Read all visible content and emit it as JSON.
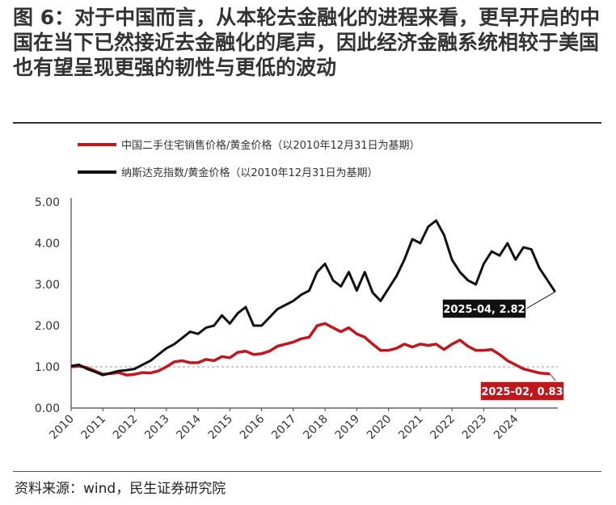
{
  "title": "图 6：对于中国而言，从本轮去金融化的进程来看，更早开启的中国在当下已然接近去金融化的尾声，因此经济金融系统相较于美国也有望呈现更强的韧性与更低的波动",
  "source": "资料来源：wind，民生证券研究院",
  "chart_data": {
    "type": "line",
    "x_ticks": [
      "2010",
      "2011",
      "2012",
      "2013",
      "2014",
      "2015",
      "2016",
      "2017",
      "2018",
      "2019",
      "2020",
      "2021",
      "2022",
      "2023",
      "2024"
    ],
    "y_ticks": [
      "0.00",
      "1.00",
      "2.00",
      "3.00",
      "4.00",
      "5.00"
    ],
    "ylim": [
      0,
      5
    ],
    "xlim": [
      "2010-01",
      "2025-04"
    ],
    "reference_line": 1.0,
    "grid": false,
    "legend_position": "top-left",
    "series": [
      {
        "name": "中国二手住宅销售价格/黄金价格（以2010年12月31日为基期）",
        "color": "#c0171c",
        "points": [
          [
            "2010-01",
            1.0
          ],
          [
            "2010-04",
            1.02
          ],
          [
            "2010-07",
            0.98
          ],
          [
            "2010-10",
            0.9
          ],
          [
            "2011-01",
            0.82
          ],
          [
            "2011-04",
            0.84
          ],
          [
            "2011-07",
            0.86
          ],
          [
            "2011-10",
            0.8
          ],
          [
            "2012-01",
            0.82
          ],
          [
            "2012-04",
            0.86
          ],
          [
            "2012-07",
            0.85
          ],
          [
            "2012-10",
            0.9
          ],
          [
            "2013-01",
            1.0
          ],
          [
            "2013-04",
            1.12
          ],
          [
            "2013-07",
            1.15
          ],
          [
            "2013-10",
            1.1
          ],
          [
            "2014-01",
            1.1
          ],
          [
            "2014-04",
            1.18
          ],
          [
            "2014-07",
            1.15
          ],
          [
            "2014-10",
            1.25
          ],
          [
            "2015-01",
            1.22
          ],
          [
            "2015-04",
            1.35
          ],
          [
            "2015-07",
            1.38
          ],
          [
            "2015-10",
            1.3
          ],
          [
            "2016-01",
            1.32
          ],
          [
            "2016-04",
            1.38
          ],
          [
            "2016-07",
            1.5
          ],
          [
            "2016-10",
            1.55
          ],
          [
            "2017-01",
            1.6
          ],
          [
            "2017-04",
            1.68
          ],
          [
            "2017-07",
            1.72
          ],
          [
            "2017-10",
            2.0
          ],
          [
            "2018-01",
            2.05
          ],
          [
            "2018-04",
            1.95
          ],
          [
            "2018-07",
            1.85
          ],
          [
            "2018-10",
            1.95
          ],
          [
            "2019-01",
            1.8
          ],
          [
            "2019-04",
            1.72
          ],
          [
            "2019-07",
            1.55
          ],
          [
            "2019-10",
            1.4
          ],
          [
            "2020-01",
            1.4
          ],
          [
            "2020-04",
            1.45
          ],
          [
            "2020-07",
            1.55
          ],
          [
            "2020-10",
            1.48
          ],
          [
            "2021-01",
            1.55
          ],
          [
            "2021-04",
            1.52
          ],
          [
            "2021-07",
            1.55
          ],
          [
            "2021-10",
            1.42
          ],
          [
            "2022-01",
            1.55
          ],
          [
            "2022-04",
            1.65
          ],
          [
            "2022-07",
            1.5
          ],
          [
            "2022-10",
            1.4
          ],
          [
            "2023-01",
            1.4
          ],
          [
            "2023-04",
            1.42
          ],
          [
            "2023-07",
            1.3
          ],
          [
            "2023-10",
            1.15
          ],
          [
            "2024-01",
            1.05
          ],
          [
            "2024-04",
            0.95
          ],
          [
            "2024-07",
            0.9
          ],
          [
            "2024-10",
            0.85
          ],
          [
            "2025-02",
            0.83
          ]
        ],
        "callout": "2025-02, 0.83"
      },
      {
        "name": "纳斯达克指数/黄金价格（以2010年12月31日为基期）",
        "color": "#111111",
        "points": [
          [
            "2010-01",
            1.02
          ],
          [
            "2010-04",
            1.05
          ],
          [
            "2010-07",
            0.95
          ],
          [
            "2010-10",
            0.88
          ],
          [
            "2011-01",
            0.8
          ],
          [
            "2011-04",
            0.85
          ],
          [
            "2011-07",
            0.9
          ],
          [
            "2011-10",
            0.92
          ],
          [
            "2012-01",
            0.95
          ],
          [
            "2012-04",
            1.05
          ],
          [
            "2012-07",
            1.15
          ],
          [
            "2012-10",
            1.3
          ],
          [
            "2013-01",
            1.45
          ],
          [
            "2013-04",
            1.55
          ],
          [
            "2013-07",
            1.7
          ],
          [
            "2013-10",
            1.85
          ],
          [
            "2014-01",
            1.8
          ],
          [
            "2014-04",
            1.95
          ],
          [
            "2014-07",
            2.0
          ],
          [
            "2014-10",
            2.25
          ],
          [
            "2015-01",
            2.05
          ],
          [
            "2015-04",
            2.3
          ],
          [
            "2015-07",
            2.45
          ],
          [
            "2015-10",
            2.0
          ],
          [
            "2016-01",
            2.0
          ],
          [
            "2016-04",
            2.2
          ],
          [
            "2016-07",
            2.4
          ],
          [
            "2016-10",
            2.5
          ],
          [
            "2017-01",
            2.6
          ],
          [
            "2017-04",
            2.75
          ],
          [
            "2017-07",
            2.85
          ],
          [
            "2017-10",
            3.3
          ],
          [
            "2018-01",
            3.5
          ],
          [
            "2018-04",
            3.1
          ],
          [
            "2018-07",
            2.95
          ],
          [
            "2018-10",
            3.3
          ],
          [
            "2019-01",
            2.85
          ],
          [
            "2019-04",
            3.3
          ],
          [
            "2019-07",
            2.8
          ],
          [
            "2019-10",
            2.6
          ],
          [
            "2020-01",
            2.9
          ],
          [
            "2020-04",
            3.2
          ],
          [
            "2020-07",
            3.6
          ],
          [
            "2020-10",
            4.1
          ],
          [
            "2021-01",
            4.0
          ],
          [
            "2021-04",
            4.4
          ],
          [
            "2021-07",
            4.55
          ],
          [
            "2021-10",
            4.2
          ],
          [
            "2022-01",
            3.6
          ],
          [
            "2022-04",
            3.3
          ],
          [
            "2022-07",
            3.1
          ],
          [
            "2022-10",
            3.0
          ],
          [
            "2023-01",
            3.5
          ],
          [
            "2023-04",
            3.8
          ],
          [
            "2023-07",
            3.7
          ],
          [
            "2023-10",
            4.0
          ],
          [
            "2024-01",
            3.6
          ],
          [
            "2024-04",
            3.9
          ],
          [
            "2024-07",
            3.85
          ],
          [
            "2024-10",
            3.4
          ],
          [
            "2025-04",
            2.82
          ]
        ],
        "callout": "2025-04, 2.82"
      }
    ]
  }
}
